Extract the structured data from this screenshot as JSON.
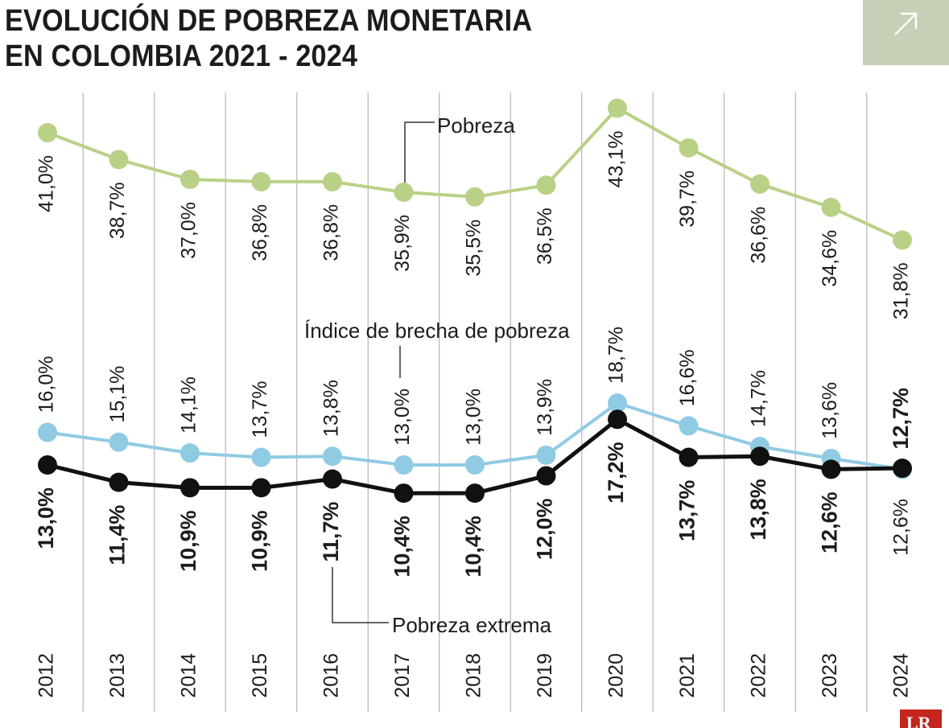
{
  "header": {
    "title_line1": "EVOLUCIÓN DE POBREZA MONETARIA",
    "title_line2": "EN COLOMBIA 2021 - 2024"
  },
  "expand_icon": "arrow-up-right-icon",
  "logo": {
    "text": "LR"
  },
  "colors": {
    "pobreza": "#b9d187",
    "brecha": "#8fcbe3",
    "extrema": "#111111",
    "grid": "#b5b5b5",
    "expand_bg": "#c8cfb7",
    "logo_bg": "#c3261d"
  },
  "chart_data": {
    "type": "line",
    "title": "EVOLUCIÓN DE POBREZA MONETARIA EN COLOMBIA 2021 - 2024",
    "categories": [
      "2012",
      "2013",
      "2014",
      "2015",
      "2016",
      "2017",
      "2018",
      "2019",
      "2020",
      "2021",
      "2022",
      "2023",
      "2024"
    ],
    "series": [
      {
        "name": "Pobreza",
        "values": [
          41.0,
          38.7,
          37.0,
          36.8,
          36.8,
          35.9,
          35.5,
          36.5,
          43.1,
          39.7,
          36.6,
          34.6,
          31.8
        ],
        "labels": [
          "41,0%",
          "38,7%",
          "37,0%",
          "36,8%",
          "36,8%",
          "35,9%",
          "35,5%",
          "36,5%",
          "43,1%",
          "39,7%",
          "36,6%",
          "34,6%",
          "31,8%"
        ]
      },
      {
        "name": "Índice de brecha de pobreza",
        "values": [
          16.0,
          15.1,
          14.1,
          13.7,
          13.8,
          13.0,
          13.0,
          13.9,
          18.7,
          16.6,
          14.7,
          13.6,
          12.6
        ],
        "labels": [
          "16,0%",
          "15,1%",
          "14,1%",
          "13,7%",
          "13,8%",
          "13,0%",
          "13,0%",
          "13,9%",
          "18,7%",
          "16,6%",
          "14,7%",
          "13,6%",
          "12,6%"
        ]
      },
      {
        "name": "Pobreza extrema",
        "values": [
          13.0,
          11.4,
          10.9,
          10.9,
          11.7,
          10.4,
          10.4,
          12.0,
          17.2,
          13.7,
          13.8,
          12.6,
          12.7
        ],
        "labels": [
          "13,0%",
          "11,4%",
          "10,9%",
          "10,9%",
          "11,7%",
          "10,4%",
          "10,4%",
          "12,0%",
          "17,2%",
          "13,7%",
          "13,8%",
          "12,6%",
          "12,7%"
        ]
      }
    ],
    "grid": "vertical",
    "legend": "inline annotations"
  }
}
